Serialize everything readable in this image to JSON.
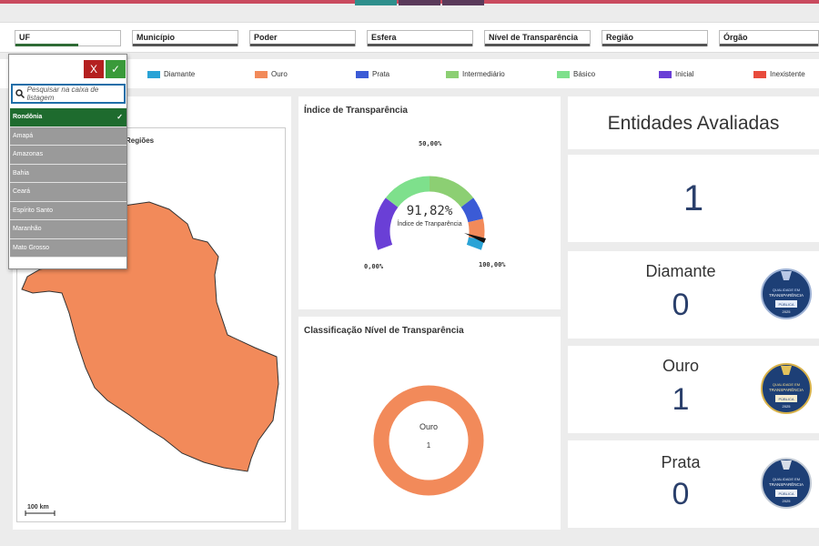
{
  "filters": [
    "UF",
    "Município",
    "Poder",
    "Esfera",
    "Nível de Transparência",
    "Região",
    "Órgão"
  ],
  "legend": [
    {
      "label": "Diamante",
      "color": "#2aa3d6"
    },
    {
      "label": "Ouro",
      "color": "#f28a5a"
    },
    {
      "label": "Prata",
      "color": "#3b5bd6"
    },
    {
      "label": "Intermediário",
      "color": "#8ccf73"
    },
    {
      "label": "Básico",
      "color": "#7ee08c"
    },
    {
      "label": "Inicial",
      "color": "#6a3fd6"
    },
    {
      "label": "Inexistente",
      "color": "#e84b3c"
    }
  ],
  "dropdown": {
    "cancel_label": "X",
    "confirm_label": "✓",
    "search_placeholder": "Pesquisar na caixa de listagem",
    "items": [
      "Rondônia",
      "Amapá",
      "Amazonas",
      "Bahia",
      "Ceará",
      "Espírito Santo",
      "Maranhão",
      "Mato Grosso"
    ],
    "selected": "Rondônia"
  },
  "map": {
    "title": "Regiões",
    "scale_label": "100 km",
    "fill_color": "#f28a5a"
  },
  "gauge": {
    "title": "Índice de Transparência",
    "value_label": "91,82%",
    "value": 91.82,
    "sublabel": "Índice de Tranparência",
    "min_label": "0,00%",
    "mid_label": "50,00%",
    "max_label": "100,00%"
  },
  "classification": {
    "title": "Classificação Nível de Transparência",
    "center_label": "Ouro",
    "center_value": "1",
    "color": "#f28a5a"
  },
  "stats": {
    "entities_title": "Entidades Avaliadas",
    "entities_value": "1",
    "cards": [
      {
        "label": "Diamante",
        "value": "0"
      },
      {
        "label": "Ouro",
        "value": "1"
      },
      {
        "label": "Prata",
        "value": "0"
      }
    ]
  },
  "badge_text": {
    "line1": "QUALIDADE EM",
    "line2": "TRANSPARÊNCIA",
    "line3": "PÚBLICA",
    "year": "2025"
  }
}
